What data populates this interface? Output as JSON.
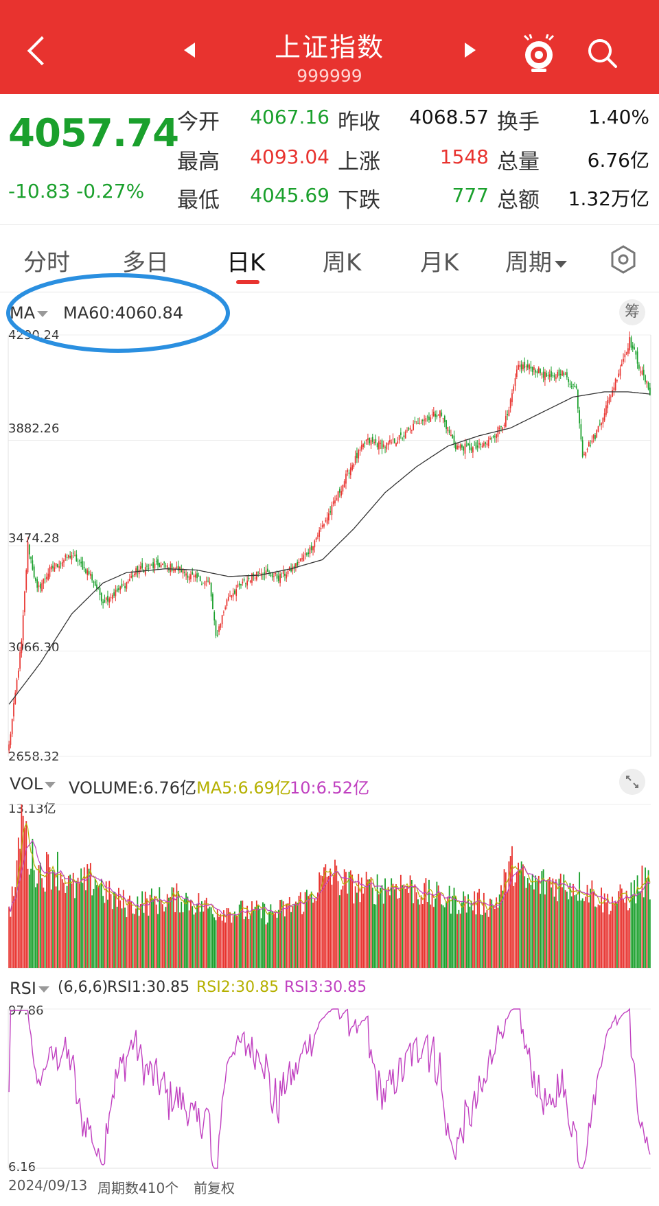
{
  "header": {
    "title": "上证指数",
    "code": "999999",
    "icons": [
      "back-icon",
      "prev-triangle-icon",
      "next-triangle-icon",
      "mascot-icon",
      "search-icon"
    ]
  },
  "quote": {
    "price": "4057.74",
    "change": "-10.83",
    "change_pct": "-0.27%",
    "rows": [
      {
        "l1": "今开",
        "v1": "4067.16",
        "c1": "green",
        "l2": "昨收",
        "v2": "4068.57",
        "c2": "black",
        "l3": "换手",
        "v3": "1.40%",
        "c3": "black"
      },
      {
        "l1": "最高",
        "v1": "4093.04",
        "c1": "red",
        "l2": "上涨",
        "v2": "1548",
        "c2": "red",
        "l3": "总量",
        "v3": "6.76亿",
        "c3": "black"
      },
      {
        "l1": "最低",
        "v1": "4045.69",
        "c1": "green",
        "l2": "下跌",
        "v2": "777",
        "c2": "green",
        "l3": "总额",
        "v3": "1.32万亿",
        "c3": "black"
      }
    ]
  },
  "tabs": [
    "分时",
    "多日",
    "日K",
    "周K",
    "月K",
    "周期"
  ],
  "active_tab": "日K",
  "colors": {
    "up": "#e8332f",
    "down": "#1aa02c",
    "header": "#e8332f",
    "ma60": "#333333",
    "ma5": "#b5b000",
    "ma10": "#c040c0",
    "rsi": "#c040c0",
    "annotation": "#2a8fe0"
  },
  "chart_data": [
    {
      "type": "candlestick",
      "indicator": "MA",
      "ma_label": "MA60:4060.84",
      "chip": "筹",
      "y_ticks": [
        "4290.24",
        "3882.26",
        "3474.28",
        "3066.30",
        "2658.32"
      ],
      "ylim": [
        2658.32,
        4290.24
      ],
      "candle_count": 410,
      "series_close_keypoints": [
        [
          0,
          2700
        ],
        [
          8,
          3100
        ],
        [
          12,
          3480
        ],
        [
          18,
          3300
        ],
        [
          26,
          3380
        ],
        [
          40,
          3440
        ],
        [
          52,
          3360
        ],
        [
          60,
          3260
        ],
        [
          72,
          3310
        ],
        [
          82,
          3380
        ],
        [
          96,
          3400
        ],
        [
          110,
          3380
        ],
        [
          118,
          3350
        ],
        [
          128,
          3330
        ],
        [
          132,
          3120
        ],
        [
          140,
          3280
        ],
        [
          150,
          3330
        ],
        [
          160,
          3380
        ],
        [
          172,
          3350
        ],
        [
          182,
          3390
        ],
        [
          192,
          3460
        ],
        [
          206,
          3620
        ],
        [
          218,
          3780
        ],
        [
          228,
          3880
        ],
        [
          240,
          3860
        ],
        [
          252,
          3900
        ],
        [
          262,
          3960
        ],
        [
          275,
          3990
        ],
        [
          285,
          3860
        ],
        [
          297,
          3850
        ],
        [
          305,
          3870
        ],
        [
          318,
          3970
        ],
        [
          325,
          4170
        ],
        [
          335,
          4160
        ],
        [
          346,
          4120
        ],
        [
          352,
          4150
        ],
        [
          362,
          4080
        ],
        [
          366,
          3830
        ],
        [
          374,
          3900
        ],
        [
          384,
          4060
        ],
        [
          396,
          4270
        ],
        [
          404,
          4140
        ],
        [
          410,
          4057.74
        ]
      ],
      "ma60_keypoints": [
        [
          0,
          2860
        ],
        [
          20,
          3020
        ],
        [
          40,
          3210
        ],
        [
          60,
          3330
        ],
        [
          75,
          3370
        ],
        [
          100,
          3385
        ],
        [
          120,
          3380
        ],
        [
          140,
          3355
        ],
        [
          160,
          3360
        ],
        [
          180,
          3385
        ],
        [
          200,
          3420
        ],
        [
          220,
          3540
        ],
        [
          240,
          3680
        ],
        [
          260,
          3780
        ],
        [
          280,
          3860
        ],
        [
          300,
          3900
        ],
        [
          320,
          3930
        ],
        [
          340,
          3990
        ],
        [
          360,
          4050
        ],
        [
          380,
          4070
        ],
        [
          395,
          4070
        ],
        [
          410,
          4060.84
        ]
      ]
    },
    {
      "type": "bar",
      "indicator": "VOL",
      "volume_label": "VOLUME:6.76亿",
      "ma5_label": "MA5:6.69亿",
      "ma10_label": "10:6.52亿",
      "y_max_label": "13.13亿",
      "ylim": [
        0,
        13.13
      ],
      "volume_keypoints": [
        [
          0,
          4.5
        ],
        [
          5,
          7
        ],
        [
          8,
          13.13
        ],
        [
          12,
          9
        ],
        [
          20,
          7.5
        ],
        [
          30,
          8
        ],
        [
          40,
          6.2
        ],
        [
          55,
          7
        ],
        [
          65,
          5.5
        ],
        [
          75,
          5
        ],
        [
          90,
          5.2
        ],
        [
          110,
          5.5
        ],
        [
          130,
          4.6
        ],
        [
          150,
          4.4
        ],
        [
          170,
          4.3
        ],
        [
          190,
          5.4
        ],
        [
          205,
          7.5
        ],
        [
          215,
          6.5
        ],
        [
          230,
          6.2
        ],
        [
          250,
          6.6
        ],
        [
          270,
          5.6
        ],
        [
          290,
          5.2
        ],
        [
          310,
          5.0
        ],
        [
          322,
          8.2
        ],
        [
          330,
          6.5
        ],
        [
          345,
          6.7
        ],
        [
          360,
          6.5
        ],
        [
          370,
          6.2
        ],
        [
          380,
          5.2
        ],
        [
          395,
          5.5
        ],
        [
          405,
          6.8
        ],
        [
          410,
          6.76
        ]
      ]
    },
    {
      "type": "line",
      "indicator": "RSI",
      "params_label": "(6,6,6)",
      "rsi1_label": "RSI1:30.85",
      "rsi2_label": "RSI2:30.85",
      "rsi3_label": "RSI3:30.85",
      "y_ticks": [
        "97.86",
        "6.16"
      ],
      "ylim": [
        6.16,
        97.86
      ]
    }
  ],
  "footer": {
    "date": "2024/09/13",
    "period_count": "周期数410个",
    "adjust": "前复权"
  }
}
